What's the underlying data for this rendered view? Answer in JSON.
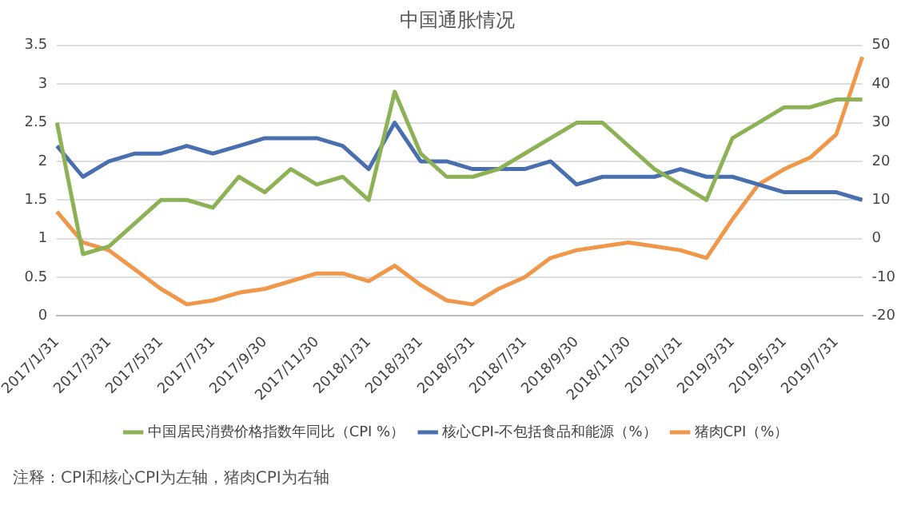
{
  "chart_data": {
    "type": "line",
    "title": "中国通胀情况",
    "categories": [
      "2017/1/31",
      null,
      "2017/3/31",
      null,
      "2017/5/31",
      null,
      "2017/7/31",
      null,
      "2017/9/30",
      null,
      "2017/11/30",
      null,
      "2018/1/31",
      null,
      "2018/3/31",
      null,
      "2018/5/31",
      null,
      "2018/7/31",
      null,
      "2018/9/30",
      null,
      "2018/11/30",
      null,
      "2019/1/31",
      null,
      "2019/3/31",
      null,
      "2019/5/31",
      null,
      "2019/7/31",
      null
    ],
    "series": [
      {
        "name": "中国居民消费价格指数年同比（CPI %）",
        "color": "#8db255",
        "values": [
          2.5,
          0.8,
          0.9,
          1.2,
          1.5,
          1.5,
          1.4,
          1.8,
          1.6,
          1.9,
          1.7,
          1.8,
          1.5,
          2.9,
          2.1,
          1.8,
          1.8,
          1.9,
          2.1,
          2.3,
          2.5,
          2.5,
          2.2,
          1.9,
          1.7,
          1.5,
          2.3,
          2.5,
          2.7,
          2.7,
          2.8,
          2.8
        ]
      },
      {
        "name": "核心CPI-不包括食品和能源（%）",
        "color": "#4a6fae",
        "values": [
          2.2,
          1.8,
          2.0,
          2.1,
          2.1,
          2.2,
          2.1,
          2.2,
          2.3,
          2.3,
          2.3,
          2.2,
          1.9,
          2.5,
          2.0,
          2.0,
          1.9,
          1.9,
          1.9,
          2.0,
          1.7,
          1.8,
          1.8,
          1.8,
          1.9,
          1.8,
          1.8,
          1.7,
          1.6,
          1.6,
          1.6,
          1.5
        ]
      },
      {
        "name": "猪肉CPI（%）",
        "color": "#f0974a",
        "axis": "y2",
        "values": [
          7,
          -1,
          -3,
          -8,
          -13,
          -17,
          -16,
          -14,
          -13,
          -11,
          -9,
          -9,
          -11,
          -7,
          -12,
          -16,
          -17,
          -13,
          -10,
          -5,
          -3,
          -2,
          -1,
          -2,
          -3,
          -5,
          5,
          14,
          18,
          21,
          27,
          47
        ]
      }
    ],
    "ylim": [
      0,
      3.5
    ],
    "yticks": [
      0,
      0.5,
      1,
      1.5,
      2,
      2.5,
      3,
      3.5
    ],
    "y2lim": [
      -20,
      50
    ],
    "y2ticks": [
      -20,
      -10,
      0,
      10,
      20,
      30,
      40,
      50
    ],
    "grid": "y",
    "legend": "bottom",
    "marker": "none",
    "line_style": "solid",
    "annotations": [
      "注释：CPI和核心CPI为左轴，猪肉CPI为右轴"
    ]
  }
}
